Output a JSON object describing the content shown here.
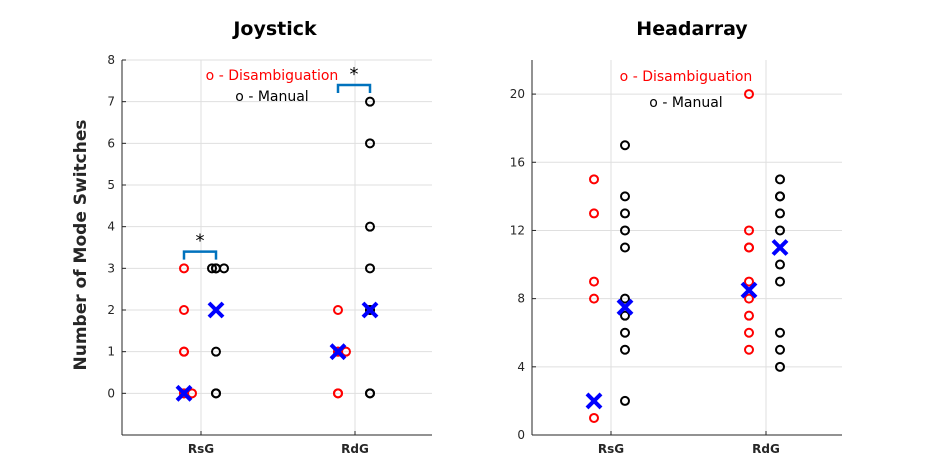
{
  "ylabel": "Number of Mode Switches",
  "colors": {
    "disambiguation": "#ff0000",
    "manual": "#000000",
    "mean": "#0000ff",
    "bracket": "#0072bd",
    "grid": "#dfdfdf",
    "axis": "#262626"
  },
  "chart_data": [
    {
      "type": "scatter",
      "title": "Joystick",
      "categories": [
        "RsG",
        "RdG"
      ],
      "ylim": [
        -1,
        8
      ],
      "yticks": [
        0,
        1,
        2,
        3,
        4,
        5,
        6,
        7,
        8
      ],
      "grid": true,
      "legend": [
        "o - Disambiguation",
        "o - Manual"
      ],
      "series": [
        {
          "name": "o - Disambiguation",
          "points": [
            {
              "cat": 0,
              "y": 0
            },
            {
              "cat": 0,
              "y": 0
            },
            {
              "cat": 0,
              "y": 0
            },
            {
              "cat": 0,
              "y": 1
            },
            {
              "cat": 0,
              "y": 1
            },
            {
              "cat": 0,
              "y": 2
            },
            {
              "cat": 0,
              "y": 3
            },
            {
              "cat": 1,
              "y": 0
            },
            {
              "cat": 1,
              "y": 0
            },
            {
              "cat": 1,
              "y": 1
            },
            {
              "cat": 1,
              "y": 1
            },
            {
              "cat": 1,
              "y": 1
            },
            {
              "cat": 1,
              "y": 2
            }
          ]
        },
        {
          "name": "o - Manual",
          "points": [
            {
              "cat": 0,
              "y": 0
            },
            {
              "cat": 0,
              "y": 0
            },
            {
              "cat": 0,
              "y": 1
            },
            {
              "cat": 0,
              "y": 3
            },
            {
              "cat": 0,
              "y": 3
            },
            {
              "cat": 0,
              "y": 3
            },
            {
              "cat": 0,
              "y": 3
            },
            {
              "cat": 1,
              "y": 0
            },
            {
              "cat": 1,
              "y": 0
            },
            {
              "cat": 1,
              "y": 2
            },
            {
              "cat": 1,
              "y": 2
            },
            {
              "cat": 1,
              "y": 3
            },
            {
              "cat": 1,
              "y": 4
            },
            {
              "cat": 1,
              "y": 6
            },
            {
              "cat": 1,
              "y": 7
            }
          ]
        },
        {
          "means": [
            {
              "cat": 0,
              "group": "disambiguation",
              "y": 0
            },
            {
              "cat": 0,
              "group": "manual",
              "y": 2
            },
            {
              "cat": 1,
              "group": "disambiguation",
              "y": 1
            },
            {
              "cat": 1,
              "group": "manual",
              "y": 2
            }
          ]
        }
      ],
      "significance": [
        {
          "cat": 0,
          "label": "*",
          "y": 3.4
        },
        {
          "cat": 1,
          "label": "*",
          "y": 7.4
        }
      ]
    },
    {
      "type": "scatter",
      "title": "Headarray",
      "categories": [
        "RsG",
        "RdG"
      ],
      "ylim": [
        0,
        22
      ],
      "yticks": [
        0,
        4,
        8,
        12,
        16,
        20
      ],
      "grid": true,
      "legend": [
        "o - Disambiguation",
        "o - Manual"
      ],
      "series": [
        {
          "name": "o - Disambiguation",
          "points": [
            {
              "cat": 0,
              "y": 1
            },
            {
              "cat": 0,
              "y": 8
            },
            {
              "cat": 0,
              "y": 9
            },
            {
              "cat": 0,
              "y": 13
            },
            {
              "cat": 0,
              "y": 15
            },
            {
              "cat": 1,
              "y": 5
            },
            {
              "cat": 1,
              "y": 6
            },
            {
              "cat": 1,
              "y": 7
            },
            {
              "cat": 1,
              "y": 8
            },
            {
              "cat": 1,
              "y": 9
            },
            {
              "cat": 1,
              "y": 11
            },
            {
              "cat": 1,
              "y": 11
            },
            {
              "cat": 1,
              "y": 12
            },
            {
              "cat": 1,
              "y": 20
            }
          ]
        },
        {
          "name": "o - Manual",
          "points": [
            {
              "cat": 0,
              "y": 2
            },
            {
              "cat": 0,
              "y": 5
            },
            {
              "cat": 0,
              "y": 6
            },
            {
              "cat": 0,
              "y": 7
            },
            {
              "cat": 0,
              "y": 8
            },
            {
              "cat": 0,
              "y": 11
            },
            {
              "cat": 0,
              "y": 12
            },
            {
              "cat": 0,
              "y": 13
            },
            {
              "cat": 0,
              "y": 14
            },
            {
              "cat": 0,
              "y": 17
            },
            {
              "cat": 1,
              "y": 4
            },
            {
              "cat": 1,
              "y": 5
            },
            {
              "cat": 1,
              "y": 6
            },
            {
              "cat": 1,
              "y": 9
            },
            {
              "cat": 1,
              "y": 10
            },
            {
              "cat": 1,
              "y": 12
            },
            {
              "cat": 1,
              "y": 13
            },
            {
              "cat": 1,
              "y": 14
            },
            {
              "cat": 1,
              "y": 14
            },
            {
              "cat": 1,
              "y": 15
            }
          ]
        },
        {
          "means": [
            {
              "cat": 0,
              "group": "disambiguation",
              "y": 2
            },
            {
              "cat": 0,
              "group": "manual",
              "y": 7.5
            },
            {
              "cat": 1,
              "group": "disambiguation",
              "y": 8.5
            },
            {
              "cat": 1,
              "group": "manual",
              "y": 11
            }
          ]
        }
      ],
      "significance": []
    }
  ]
}
